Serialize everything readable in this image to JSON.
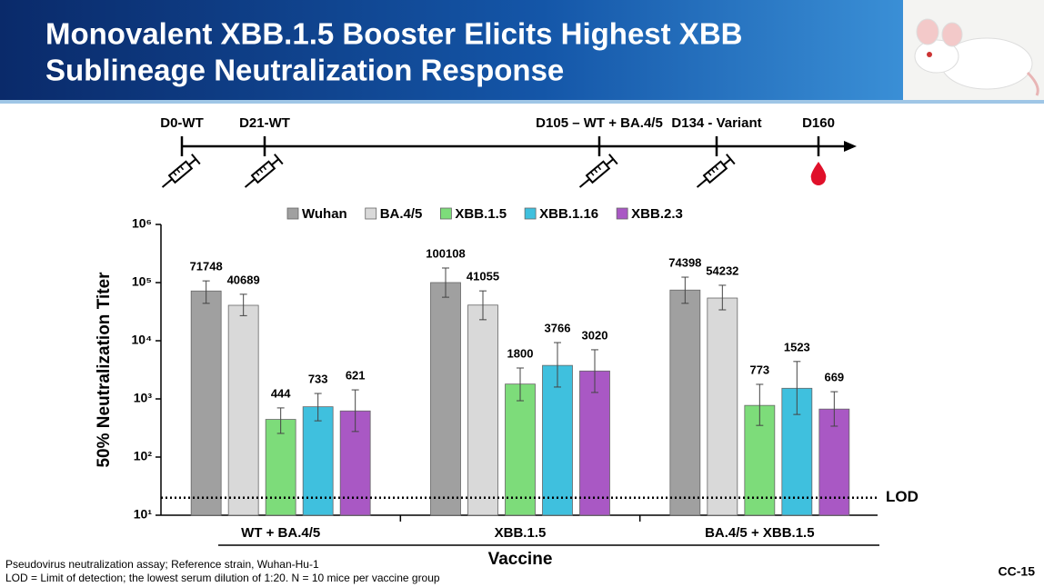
{
  "header": {
    "title_lines": [
      "Monovalent XBB.1.5 Booster Elicits Highest XBB",
      "Sublineage Neutralization Response"
    ]
  },
  "timeline": [
    "D0-WT",
    "D21-WT",
    "D105 – WT + BA.4/5",
    "D134 - Variant",
    "D160"
  ],
  "chart_data": {
    "type": "bar",
    "log_scale": true,
    "categories": [
      "WT + BA.4/5",
      "XBB.1.5",
      "BA.4/5 + XBB.1.5"
    ],
    "xlabel": "Vaccine",
    "ylabel": "50% Neutralization Titer",
    "ylim": [
      10,
      1000000
    ],
    "yticks": [
      {
        "value": 10,
        "label": "10¹"
      },
      {
        "value": 100,
        "label": "10²"
      },
      {
        "value": 1000,
        "label": "10³"
      },
      {
        "value": 10000,
        "label": "10⁴"
      },
      {
        "value": 100000,
        "label": "10⁵"
      },
      {
        "value": 1000000,
        "label": "10⁶"
      }
    ],
    "series": [
      {
        "name": "Wuhan",
        "color": "#a0a0a0",
        "values": [
          71748,
          100108,
          74398
        ],
        "errors_high": [
          107000,
          178000,
          124000
        ],
        "errors_low": [
          44000,
          56000,
          44000
        ]
      },
      {
        "name": "BA.4/5",
        "color": "#d9d9d9",
        "values": [
          40689,
          41055,
          54232
        ],
        "errors_high": [
          63000,
          72000,
          90000
        ],
        "errors_low": [
          27000,
          23000,
          34000
        ]
      },
      {
        "name": "XBB.1.5",
        "color": "#7ddc7a",
        "values": [
          444,
          1800,
          773
        ],
        "errors_high": [
          700,
          3400,
          1780
        ],
        "errors_low": [
          255,
          930,
          350
        ]
      },
      {
        "name": "XBB.1.16",
        "color": "#3fc0de",
        "values": [
          733,
          3766,
          1523
        ],
        "errors_high": [
          1240,
          9300,
          4400
        ],
        "errors_low": [
          420,
          1600,
          540
        ]
      },
      {
        "name": "XBB.2.3",
        "color": "#a958c4",
        "values": [
          621,
          3020,
          669
        ],
        "errors_high": [
          1430,
          7000,
          1330
        ],
        "errors_low": [
          275,
          1290,
          340
        ]
      }
    ],
    "reference_line": {
      "value": 20,
      "label": "LOD"
    }
  },
  "footnotes": [
    "Pseudovirus neutralization assay; Reference strain, Wuhan-Hu-1",
    "LOD = Limit of detection; the lowest serum dilution of 1:20. N = 10 mice per vaccine group"
  ],
  "page_id": "CC-15"
}
